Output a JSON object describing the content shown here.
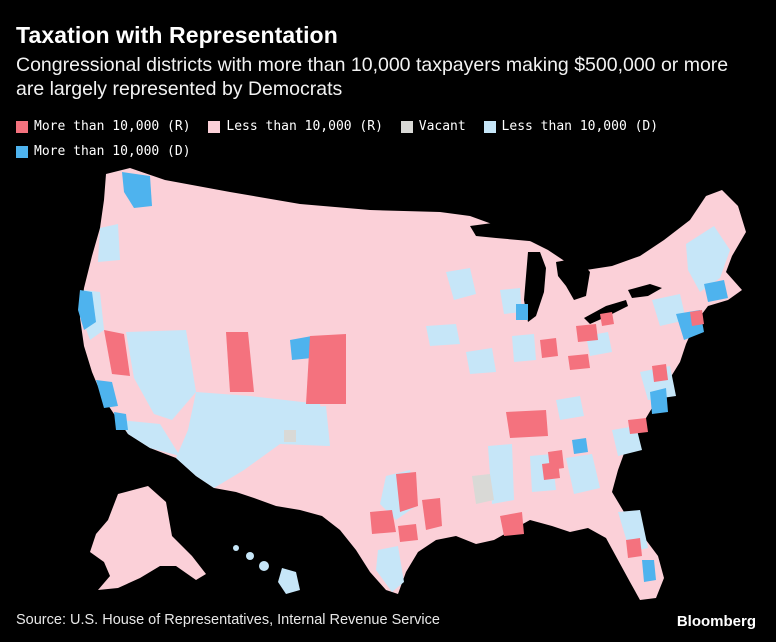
{
  "title": "Taxation with Representation",
  "subtitle": "Congressional districts with more than 10,000 taxpayers making $500,000 or more are largely represented by Democrats",
  "legend": [
    {
      "label": "More than 10,000 (R)",
      "color": "#f4727e"
    },
    {
      "label": "Less than 10,000 (R)",
      "color": "#fbd0d8"
    },
    {
      "label": "Vacant",
      "color": "#d9d9d6"
    },
    {
      "label": "Less than 10,000 (D)",
      "color": "#c6e6f8"
    },
    {
      "label": "More than 10,000 (D)",
      "color": "#4eb3ee"
    }
  ],
  "source": "Source: U.S. House of Representatives, Internal Revenue Service",
  "brand": "Bloomberg",
  "colors": {
    "background": "#000000",
    "r_high": "#f4727e",
    "r_low": "#fbd0d8",
    "vacant": "#d9d9d6",
    "d_low": "#c6e6f8",
    "d_high": "#4eb3ee"
  }
}
